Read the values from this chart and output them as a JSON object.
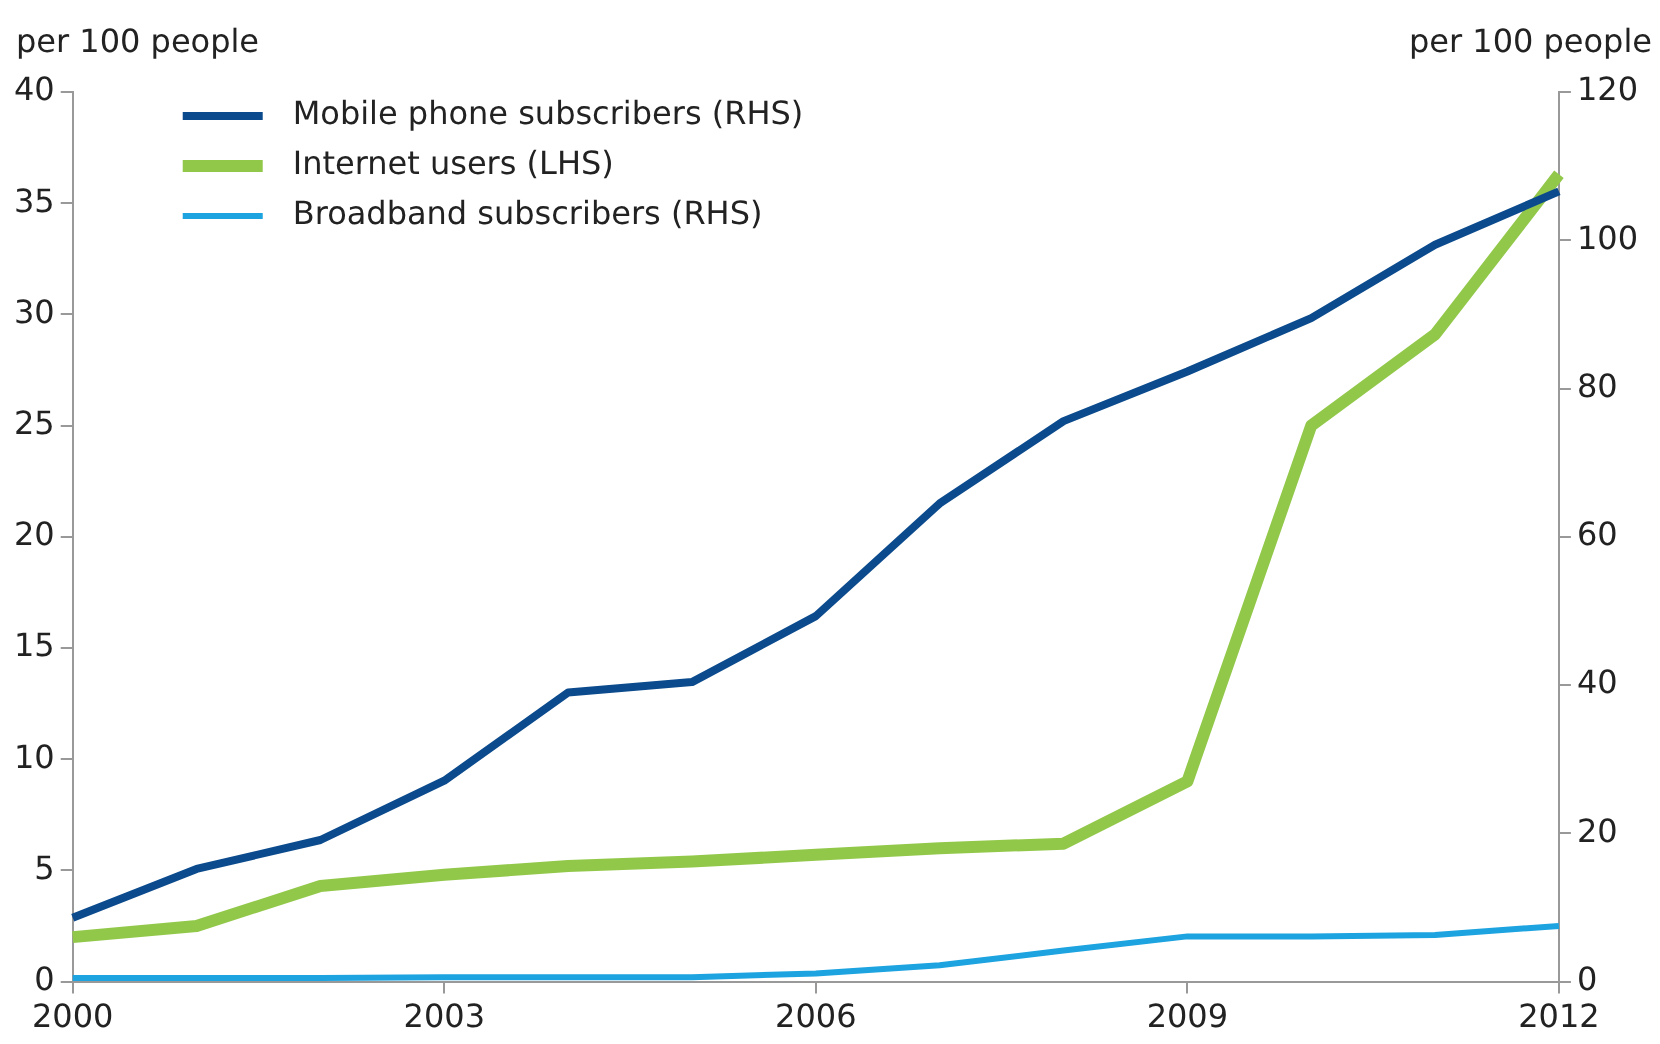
{
  "chart_data": {
    "type": "line",
    "ylabel": "per 100 people",
    "y2label": "per 100 people",
    "x": [
      2000,
      2001,
      2002,
      2003,
      2004,
      2005,
      2006,
      2007,
      2008,
      2009,
      2010,
      2011,
      2012
    ],
    "xlim": [
      2000,
      2012
    ],
    "xticks": [
      2000,
      2003,
      2006,
      2009,
      2012
    ],
    "ylim": [
      0,
      40
    ],
    "yticks": [
      0,
      5,
      10,
      15,
      20,
      25,
      30,
      35,
      40
    ],
    "y2lim": [
      0,
      120
    ],
    "y2ticks": [
      0,
      20,
      40,
      60,
      80,
      100,
      120
    ],
    "grid": false,
    "legend": "top left",
    "marker": "none",
    "line_style": "solid",
    "series": [
      {
        "name": "Mobile phone subscribers (RHS)",
        "color": "#0b4a8c",
        "axis": "y2",
        "values": [
          8.6,
          15.2,
          19.1,
          27.1,
          39,
          40.4,
          49.3,
          64.5,
          75.6,
          82.3,
          89.5,
          99.4,
          106.6
        ]
      },
      {
        "name": "Internet users (LHS)",
        "color": "#92c84a",
        "values": [
          2.0,
          2.5,
          4.3,
          4.8,
          5.2,
          5.4,
          5.7,
          6.0,
          6.2,
          9.0,
          25.0,
          29.1,
          36.3
        ]
      },
      {
        "name": "Broadband subscribers (RHS)",
        "color": "#1ca3e0",
        "axis": "y2",
        "values": [
          0.5,
          0.5,
          0.5,
          0.6,
          0.6,
          0.6,
          1.1,
          2.2,
          4.2,
          6.1,
          6.1,
          6.3,
          7.5
        ]
      }
    ]
  }
}
